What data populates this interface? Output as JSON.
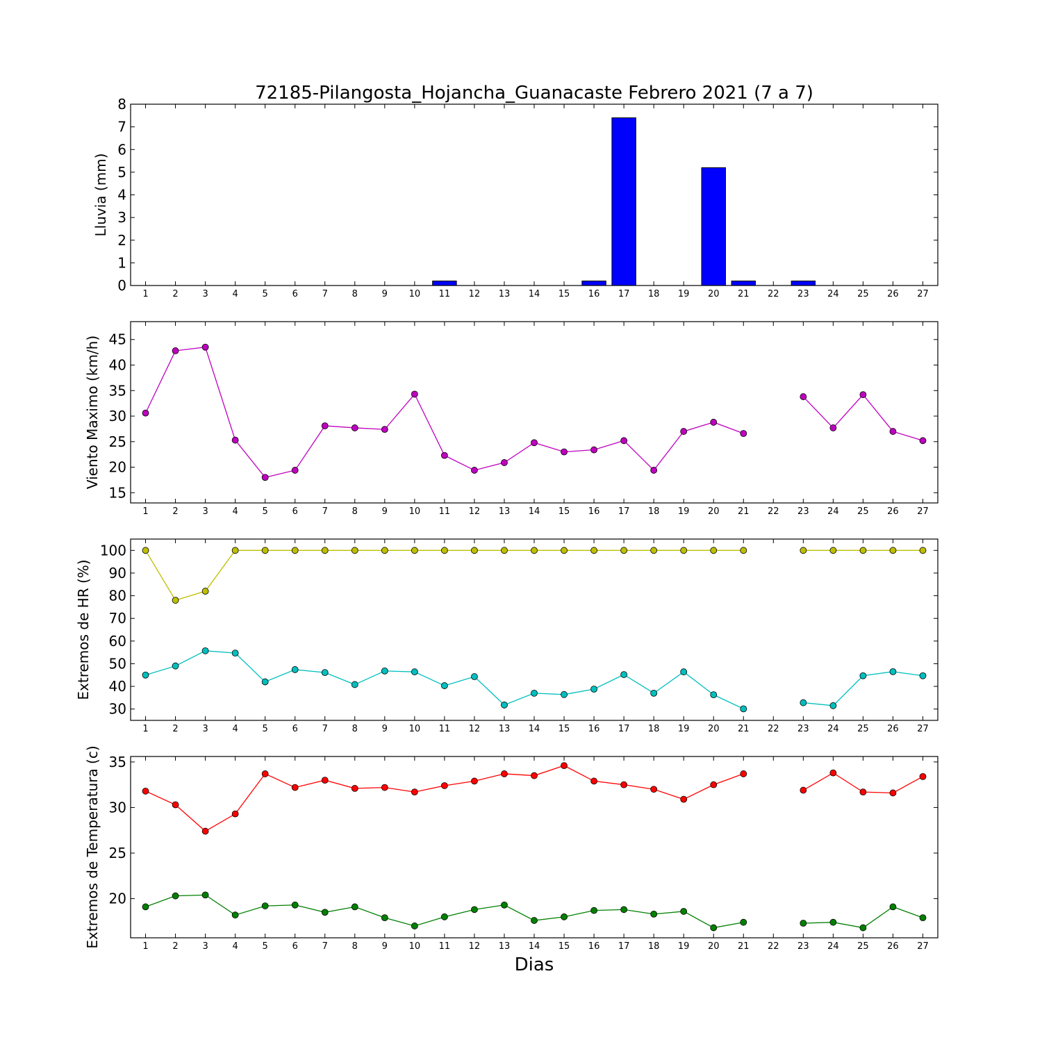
{
  "chart_title": "72185-Pilangosta_Hojancha_Guanacaste Febrero 2021  (7 a 7)",
  "xlabel": "Dias",
  "chart_data": [
    {
      "type": "bar",
      "ylabel": "Lluvia (mm)",
      "ylim": [
        0,
        8
      ],
      "yticks": [
        0,
        1,
        2,
        3,
        4,
        5,
        6,
        7,
        8
      ],
      "xlim": [
        0.5,
        27.5
      ],
      "categories": [
        1,
        2,
        3,
        4,
        5,
        6,
        7,
        8,
        9,
        10,
        11,
        12,
        13,
        14,
        15,
        16,
        17,
        18,
        19,
        20,
        21,
        22,
        23,
        24,
        25,
        26,
        27
      ],
      "series": [
        {
          "color": "#0000ff",
          "values": [
            0,
            0,
            0,
            0,
            0,
            0,
            0,
            0,
            0,
            0,
            0.2,
            0,
            0,
            0,
            0,
            0.2,
            7.4,
            0,
            0,
            5.2,
            0.2,
            null,
            0.2,
            0,
            0,
            0,
            0
          ]
        }
      ]
    },
    {
      "type": "line",
      "ylabel": "Viento Maximo (km/h)",
      "ylim": [
        13,
        48.5
      ],
      "yticks": [
        15,
        20,
        25,
        30,
        35,
        40,
        45
      ],
      "xlim": [
        0.5,
        27.5
      ],
      "categories": [
        1,
        2,
        3,
        4,
        5,
        6,
        7,
        8,
        9,
        10,
        11,
        12,
        13,
        14,
        15,
        16,
        17,
        18,
        19,
        20,
        21,
        22,
        23,
        24,
        25,
        26,
        27
      ],
      "series": [
        {
          "color": "#bf00bf",
          "values": [
            30.6,
            42.8,
            43.5,
            25.3,
            18.0,
            19.4,
            28.1,
            27.7,
            27.4,
            34.3,
            22.3,
            19.4,
            20.9,
            24.8,
            23.0,
            23.4,
            25.2,
            19.4,
            27.0,
            28.8,
            26.6,
            null,
            33.8,
            27.7,
            34.2,
            27.0,
            25.2
          ]
        }
      ]
    },
    {
      "type": "line",
      "ylabel": "Extremos de HR (%)",
      "ylim": [
        25,
        105
      ],
      "yticks": [
        30,
        40,
        50,
        60,
        70,
        80,
        90,
        100
      ],
      "xlim": [
        0.5,
        27.5
      ],
      "categories": [
        1,
        2,
        3,
        4,
        5,
        6,
        7,
        8,
        9,
        10,
        11,
        12,
        13,
        14,
        15,
        16,
        17,
        18,
        19,
        20,
        21,
        22,
        23,
        24,
        25,
        26,
        27
      ],
      "series": [
        {
          "color": "#bfbf00",
          "values": [
            100,
            78,
            82,
            100,
            100,
            100,
            100,
            100,
            100,
            100,
            100,
            100,
            100,
            100,
            100,
            100,
            100,
            100,
            100,
            100,
            100,
            null,
            100,
            100,
            100,
            100,
            100
          ]
        },
        {
          "color": "#00bfbf",
          "values": [
            45,
            49,
            55.7,
            54.7,
            42,
            47.4,
            46.1,
            40.8,
            46.8,
            46.4,
            40.3,
            44.3,
            31.8,
            37,
            36.4,
            38.8,
            45.2,
            37,
            46.4,
            36.3,
            30.1,
            null,
            32.8,
            31.5,
            44.7,
            46.5,
            44.7
          ]
        }
      ]
    },
    {
      "type": "line",
      "ylabel": "Extremos de Temperatura (c)",
      "ylim": [
        15.7,
        35.6
      ],
      "yticks": [
        20,
        25,
        30,
        35
      ],
      "xlim": [
        0.5,
        27.5
      ],
      "categories": [
        1,
        2,
        3,
        4,
        5,
        6,
        7,
        8,
        9,
        10,
        11,
        12,
        13,
        14,
        15,
        16,
        17,
        18,
        19,
        20,
        21,
        22,
        23,
        24,
        25,
        26,
        27
      ],
      "series": [
        {
          "color": "#ff0000",
          "values": [
            31.8,
            30.3,
            27.4,
            29.3,
            33.7,
            32.2,
            33.0,
            32.1,
            32.2,
            31.7,
            32.4,
            32.9,
            33.7,
            33.5,
            34.6,
            32.9,
            32.5,
            32.0,
            30.9,
            32.5,
            33.7,
            null,
            31.9,
            33.8,
            31.7,
            31.6,
            33.4
          ]
        },
        {
          "color": "#008000",
          "values": [
            19.1,
            20.3,
            20.4,
            18.2,
            19.2,
            19.3,
            18.5,
            19.1,
            17.9,
            17.0,
            18.0,
            18.8,
            19.3,
            17.6,
            18.0,
            18.7,
            18.8,
            18.3,
            18.6,
            16.8,
            17.4,
            null,
            17.3,
            17.4,
            16.8,
            19.1,
            17.9
          ]
        }
      ]
    }
  ]
}
